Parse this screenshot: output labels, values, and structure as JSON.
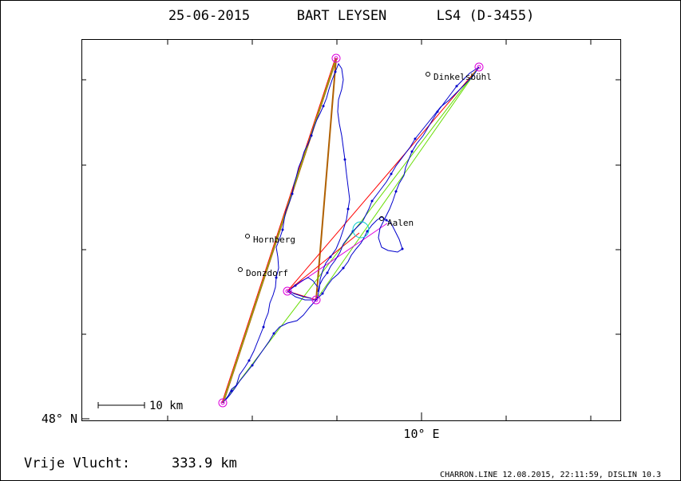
{
  "header": {
    "date": "25-06-2015",
    "pilot": "BART LEYSEN",
    "glider": "LS4 (D-3455)"
  },
  "map": {
    "lat_label": "48° N",
    "lon_label": "10° E",
    "scale_label": "10 km",
    "towns": [
      {
        "name": "Dinkelsbühl"
      },
      {
        "name": "Aalen"
      },
      {
        "name": "Hornberg"
      },
      {
        "name": "Donzdorf"
      }
    ]
  },
  "footer": {
    "free_flight_label": "Vrije Vlucht:",
    "free_flight_value": "333.9 km",
    "credits": "CHARRON.LINE 12.08.2015, 22:11:59, DISLIN 10.3"
  },
  "colors": {
    "track": "#0000cc",
    "turnpoint": "#dd00dd",
    "leg_red": "#ff0000",
    "leg_green": "#66dd00",
    "leg_brown": "#b06000",
    "start_circle": "#00cccc"
  }
}
